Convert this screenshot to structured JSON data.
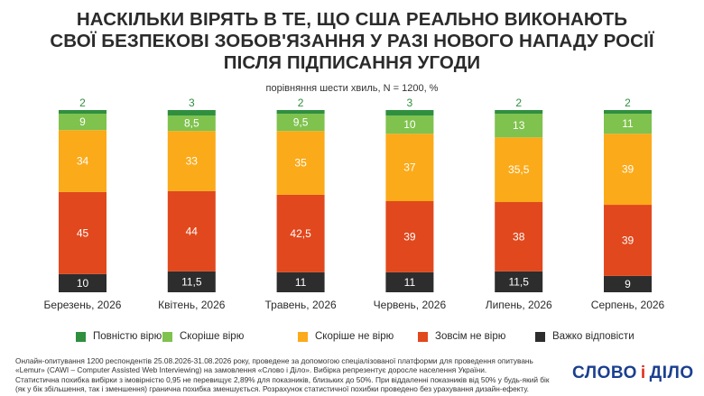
{
  "title_lines": [
    "НАСКІЛЬКИ ВІРЯТЬ В ТЕ, ЩО США РЕАЛЬНО ВИКОНАЮТЬ",
    "СВОЇ БЕЗПЕКОВІ ЗОБОВ'ЯЗАННЯ У РАЗІ НОВОГО НАПАДУ РОСІЇ",
    "ПІСЛЯ ПІДПИСАННЯ УГОДИ"
  ],
  "subtitle": "порівняння шести хвиль, N = 1200, %",
  "chart_data": {
    "type": "bar",
    "stacked": true,
    "normalized_to": 100,
    "categories": [
      "Березень, 2026",
      "Квітень, 2026",
      "Травень, 2026",
      "Червень, 2026",
      "Липень, 2026",
      "Серпень, 2026"
    ],
    "series": [
      {
        "name": "Важко відповісти",
        "color": "#2d2d2d",
        "values": [
          10,
          11.5,
          11,
          11,
          11.5,
          9
        ],
        "labels": [
          "10",
          "11,5",
          "11",
          "11",
          "11,5",
          "9"
        ]
      },
      {
        "name": "Зовсім не вірю",
        "color": "#e1481d",
        "values": [
          45,
          44,
          42.5,
          39,
          38,
          39
        ],
        "labels": [
          "45",
          "44",
          "42,5",
          "39",
          "38",
          "39"
        ]
      },
      {
        "name": "Скоріше не вірю",
        "color": "#fbaa19",
        "values": [
          34,
          33,
          35,
          37,
          35.5,
          39
        ],
        "labels": [
          "34",
          "33",
          "35",
          "37",
          "35,5",
          "39"
        ]
      },
      {
        "name": "Скоріше вірю",
        "color": "#7fc24d",
        "values": [
          9,
          8.5,
          9.5,
          10,
          13,
          11
        ],
        "labels": [
          "9",
          "8,5",
          "9,5",
          "10",
          "13",
          "11"
        ]
      },
      {
        "name": "Повністю вірю",
        "color": "#2f8f3f",
        "values": [
          2,
          3,
          2,
          3,
          2,
          2
        ],
        "labels": [
          "2",
          "3",
          "2",
          "3",
          "2",
          "2"
        ]
      }
    ]
  },
  "legend_order": [
    "Повністю вірю",
    "Скоріше вірю",
    "Скоріше не вірю",
    "Зовсім не вірю",
    "Важко відповісти"
  ],
  "footer_lines": [
    "Онлайн-опитування 1200 респондентів 25.08.2026-31.08.2026 року, проведене за допомогою спеціалізованої платформи для проведення опитувань",
    "«Lemur» (CAWI – Computer Assisted Web Interviewing) на замовлення «Слово і Діло». Вибірка репрезентує доросле населення України.",
    "Статистична похибка вибірки з імовірністю 0,95 не перевищує 2,89% для показників, близьких до 50%. При віддаленні показників від 50% у будь-який бік",
    "(як у бік збільшення, так і зменшення) гранична похибка зменшується. Розрахунок статистичної похибки проведено без урахування дизайн-ефекту."
  ],
  "logo": {
    "left": "СЛОВО",
    "mid": "і",
    "right": "ДІЛО"
  }
}
